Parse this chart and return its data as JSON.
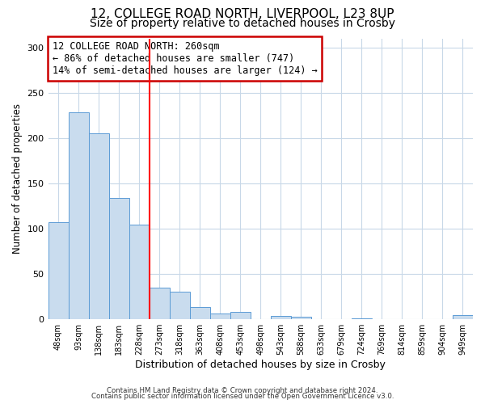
{
  "title": "12, COLLEGE ROAD NORTH, LIVERPOOL, L23 8UP",
  "subtitle": "Size of property relative to detached houses in Crosby",
  "xlabel": "Distribution of detached houses by size in Crosby",
  "ylabel": "Number of detached properties",
  "bar_labels": [
    "48sqm",
    "93sqm",
    "138sqm",
    "183sqm",
    "228sqm",
    "273sqm",
    "318sqm",
    "363sqm",
    "408sqm",
    "453sqm",
    "498sqm",
    "543sqm",
    "588sqm",
    "633sqm",
    "679sqm",
    "724sqm",
    "769sqm",
    "814sqm",
    "859sqm",
    "904sqm",
    "949sqm"
  ],
  "bar_values": [
    107,
    228,
    205,
    134,
    104,
    35,
    30,
    13,
    6,
    8,
    0,
    3,
    2,
    0,
    0,
    1,
    0,
    0,
    0,
    0,
    4
  ],
  "bar_color": "#c9dcee",
  "bar_edge_color": "#5b9bd5",
  "vline_position": 4.5,
  "vline_color": "red",
  "annotation_text": "12 COLLEGE ROAD NORTH: 260sqm\n← 86% of detached houses are smaller (747)\n14% of semi-detached houses are larger (124) →",
  "annotation_box_color": "white",
  "annotation_box_edge_color": "#cc0000",
  "ylim": [
    0,
    310
  ],
  "yticks": [
    0,
    50,
    100,
    150,
    200,
    250,
    300
  ],
  "footer_line1": "Contains HM Land Registry data © Crown copyright and database right 2024.",
  "footer_line2": "Contains public sector information licensed under the Open Government Licence v3.0.",
  "bg_color": "#ffffff",
  "plot_bg_color": "#ffffff",
  "title_fontsize": 11,
  "subtitle_fontsize": 10,
  "grid_color": "#c8d8e8"
}
